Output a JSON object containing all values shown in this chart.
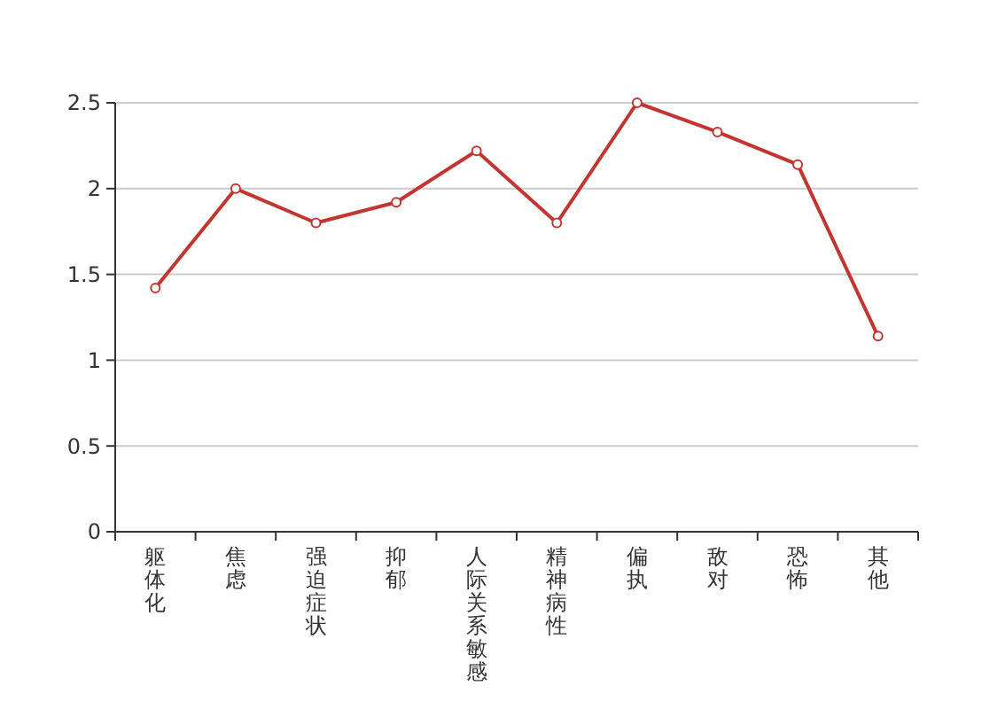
{
  "chart_data": {
    "type": "line",
    "categories": [
      "躯体化",
      "焦虑",
      "强迫症状",
      "抑郁",
      "人际关系敏感",
      "精神病性",
      "偏执",
      "敌对",
      "恐怖",
      "其他"
    ],
    "series": [
      {
        "color": "#c23531",
        "values": [
          1.42,
          2.0,
          1.8,
          1.92,
          2.22,
          1.8,
          2.5,
          2.33,
          2.14,
          1.14
        ]
      }
    ],
    "ylim": [
      0,
      2.5
    ],
    "yticks": [
      0,
      0.5,
      1,
      1.5,
      2,
      2.5
    ],
    "grid": "y",
    "marker": "circle",
    "line_style": "solid"
  }
}
